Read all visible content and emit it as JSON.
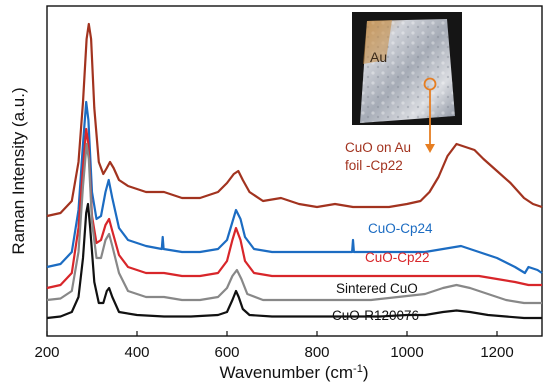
{
  "chart_data": {
    "type": "line",
    "xlabel": "Wavenumber (cm",
    "xlabel_superscript": "-1",
    "xlabel_suffix": ")",
    "ylabel": "Raman Intensity (a.u.)",
    "xlim": [
      200,
      1300
    ],
    "x_ticks": [
      "200",
      "400",
      "600",
      "800",
      "1000",
      "1200"
    ],
    "y_ticks_labeled": false,
    "grid": false,
    "series": [
      {
        "name": "CuO on Au foil -Cp22",
        "label_lines": [
          "CuO on Au",
          "foil -Cp22"
        ],
        "color": "#a2331f",
        "points": [
          [
            200,
            0.34
          ],
          [
            230,
            0.35
          ],
          [
            255,
            0.39
          ],
          [
            270,
            0.52
          ],
          [
            280,
            0.72
          ],
          [
            288,
            0.93
          ],
          [
            293,
            0.98
          ],
          [
            298,
            0.93
          ],
          [
            305,
            0.7
          ],
          [
            315,
            0.52
          ],
          [
            325,
            0.48
          ],
          [
            333,
            0.5
          ],
          [
            340,
            0.52
          ],
          [
            348,
            0.5
          ],
          [
            360,
            0.46
          ],
          [
            380,
            0.44
          ],
          [
            420,
            0.42
          ],
          [
            460,
            0.42
          ],
          [
            500,
            0.4
          ],
          [
            540,
            0.4
          ],
          [
            580,
            0.42
          ],
          [
            600,
            0.45
          ],
          [
            615,
            0.48
          ],
          [
            625,
            0.49
          ],
          [
            635,
            0.46
          ],
          [
            650,
            0.42
          ],
          [
            680,
            0.39
          ],
          [
            720,
            0.4
          ],
          [
            760,
            0.38
          ],
          [
            800,
            0.37
          ],
          [
            840,
            0.38
          ],
          [
            880,
            0.37
          ],
          [
            920,
            0.37
          ],
          [
            960,
            0.37
          ],
          [
            1000,
            0.38
          ],
          [
            1030,
            0.39
          ],
          [
            1050,
            0.42
          ],
          [
            1070,
            0.47
          ],
          [
            1090,
            0.54
          ],
          [
            1110,
            0.58
          ],
          [
            1130,
            0.57
          ],
          [
            1150,
            0.56
          ],
          [
            1170,
            0.53
          ],
          [
            1200,
            0.49
          ],
          [
            1230,
            0.45
          ],
          [
            1260,
            0.4
          ],
          [
            1280,
            0.38
          ],
          [
            1300,
            0.37
          ]
        ]
      },
      {
        "name": "CuO-Cp24",
        "color": "#1c6cc2",
        "points": [
          [
            200,
            0.17
          ],
          [
            230,
            0.18
          ],
          [
            255,
            0.22
          ],
          [
            270,
            0.36
          ],
          [
            280,
            0.58
          ],
          [
            287,
            0.72
          ],
          [
            292,
            0.66
          ],
          [
            300,
            0.42
          ],
          [
            310,
            0.33
          ],
          [
            320,
            0.34
          ],
          [
            330,
            0.42
          ],
          [
            337,
            0.46
          ],
          [
            345,
            0.4
          ],
          [
            360,
            0.3
          ],
          [
            380,
            0.26
          ],
          [
            420,
            0.24
          ],
          [
            455,
            0.23
          ],
          [
            457,
            0.27
          ],
          [
            459,
            0.23
          ],
          [
            500,
            0.22
          ],
          [
            540,
            0.22
          ],
          [
            580,
            0.23
          ],
          [
            600,
            0.26
          ],
          [
            612,
            0.32
          ],
          [
            620,
            0.36
          ],
          [
            630,
            0.33
          ],
          [
            640,
            0.27
          ],
          [
            660,
            0.23
          ],
          [
            700,
            0.22
          ],
          [
            760,
            0.22
          ],
          [
            820,
            0.22
          ],
          [
            878,
            0.22
          ],
          [
            880,
            0.26
          ],
          [
            882,
            0.22
          ],
          [
            920,
            0.22
          ],
          [
            960,
            0.22
          ],
          [
            1000,
            0.22
          ],
          [
            1040,
            0.22
          ],
          [
            1080,
            0.23
          ],
          [
            1120,
            0.24
          ],
          [
            1160,
            0.22
          ],
          [
            1200,
            0.2
          ],
          [
            1240,
            0.17
          ],
          [
            1262,
            0.15
          ],
          [
            1270,
            0.17
          ],
          [
            1290,
            0.16
          ],
          [
            1300,
            0.15
          ]
        ]
      },
      {
        "name": "CuO-Cp22",
        "color": "#d8262a",
        "points": [
          [
            200,
            0.1
          ],
          [
            230,
            0.11
          ],
          [
            255,
            0.15
          ],
          [
            270,
            0.3
          ],
          [
            280,
            0.5
          ],
          [
            287,
            0.63
          ],
          [
            292,
            0.58
          ],
          [
            300,
            0.34
          ],
          [
            310,
            0.25
          ],
          [
            320,
            0.26
          ],
          [
            330,
            0.31
          ],
          [
            338,
            0.33
          ],
          [
            345,
            0.29
          ],
          [
            360,
            0.21
          ],
          [
            380,
            0.17
          ],
          [
            420,
            0.15
          ],
          [
            460,
            0.15
          ],
          [
            500,
            0.14
          ],
          [
            540,
            0.14
          ],
          [
            580,
            0.15
          ],
          [
            600,
            0.19
          ],
          [
            612,
            0.26
          ],
          [
            620,
            0.3
          ],
          [
            630,
            0.26
          ],
          [
            640,
            0.19
          ],
          [
            660,
            0.15
          ],
          [
            700,
            0.14
          ],
          [
            760,
            0.14
          ],
          [
            820,
            0.14
          ],
          [
            880,
            0.14
          ],
          [
            920,
            0.14
          ],
          [
            960,
            0.14
          ],
          [
            1000,
            0.14
          ],
          [
            1040,
            0.14
          ],
          [
            1080,
            0.14
          ],
          [
            1120,
            0.14
          ],
          [
            1160,
            0.14
          ],
          [
            1200,
            0.13
          ],
          [
            1240,
            0.12
          ],
          [
            1270,
            0.11
          ],
          [
            1300,
            0.11
          ]
        ]
      },
      {
        "name": "Sintered CuO",
        "color": "#888888",
        "points": [
          [
            200,
            0.06
          ],
          [
            230,
            0.065
          ],
          [
            255,
            0.09
          ],
          [
            270,
            0.22
          ],
          [
            280,
            0.44
          ],
          [
            288,
            0.58
          ],
          [
            293,
            0.53
          ],
          [
            300,
            0.32
          ],
          [
            310,
            0.2
          ],
          [
            320,
            0.2
          ],
          [
            330,
            0.26
          ],
          [
            338,
            0.28
          ],
          [
            345,
            0.24
          ],
          [
            360,
            0.15
          ],
          [
            380,
            0.09
          ],
          [
            420,
            0.07
          ],
          [
            460,
            0.07
          ],
          [
            500,
            0.06
          ],
          [
            540,
            0.06
          ],
          [
            580,
            0.07
          ],
          [
            600,
            0.1
          ],
          [
            612,
            0.14
          ],
          [
            622,
            0.16
          ],
          [
            632,
            0.13
          ],
          [
            645,
            0.08
          ],
          [
            680,
            0.06
          ],
          [
            740,
            0.06
          ],
          [
            800,
            0.06
          ],
          [
            860,
            0.06
          ],
          [
            920,
            0.06
          ],
          [
            980,
            0.07
          ],
          [
            1040,
            0.08
          ],
          [
            1080,
            0.1
          ],
          [
            1110,
            0.11
          ],
          [
            1140,
            0.1
          ],
          [
            1180,
            0.08
          ],
          [
            1220,
            0.06
          ],
          [
            1260,
            0.05
          ],
          [
            1300,
            0.05
          ]
        ]
      },
      {
        "name": "CuO-R120076",
        "color": "#111111",
        "points": [
          [
            200,
            0.0
          ],
          [
            230,
            0.005
          ],
          [
            255,
            0.02
          ],
          [
            270,
            0.07
          ],
          [
            280,
            0.2
          ],
          [
            287,
            0.35
          ],
          [
            291,
            0.38
          ],
          [
            296,
            0.3
          ],
          [
            305,
            0.12
          ],
          [
            315,
            0.05
          ],
          [
            325,
            0.05
          ],
          [
            333,
            0.09
          ],
          [
            338,
            0.1
          ],
          [
            345,
            0.07
          ],
          [
            360,
            0.02
          ],
          [
            400,
            0.01
          ],
          [
            460,
            0.005
          ],
          [
            520,
            0.005
          ],
          [
            580,
            0.01
          ],
          [
            600,
            0.02
          ],
          [
            612,
            0.06
          ],
          [
            620,
            0.09
          ],
          [
            626,
            0.07
          ],
          [
            635,
            0.03
          ],
          [
            650,
            0.01
          ],
          [
            700,
            0.005
          ],
          [
            760,
            0.005
          ],
          [
            820,
            0.005
          ],
          [
            880,
            0.005
          ],
          [
            940,
            0.005
          ],
          [
            1000,
            0.01
          ],
          [
            1040,
            0.01
          ],
          [
            1080,
            0.02
          ],
          [
            1110,
            0.025
          ],
          [
            1140,
            0.02
          ],
          [
            1180,
            0.01
          ],
          [
            1220,
            0.005
          ],
          [
            1260,
            0.0
          ],
          [
            1300,
            0.0
          ]
        ]
      }
    ],
    "inset": {
      "label": "Au",
      "marker_color": "#e67e22"
    }
  }
}
